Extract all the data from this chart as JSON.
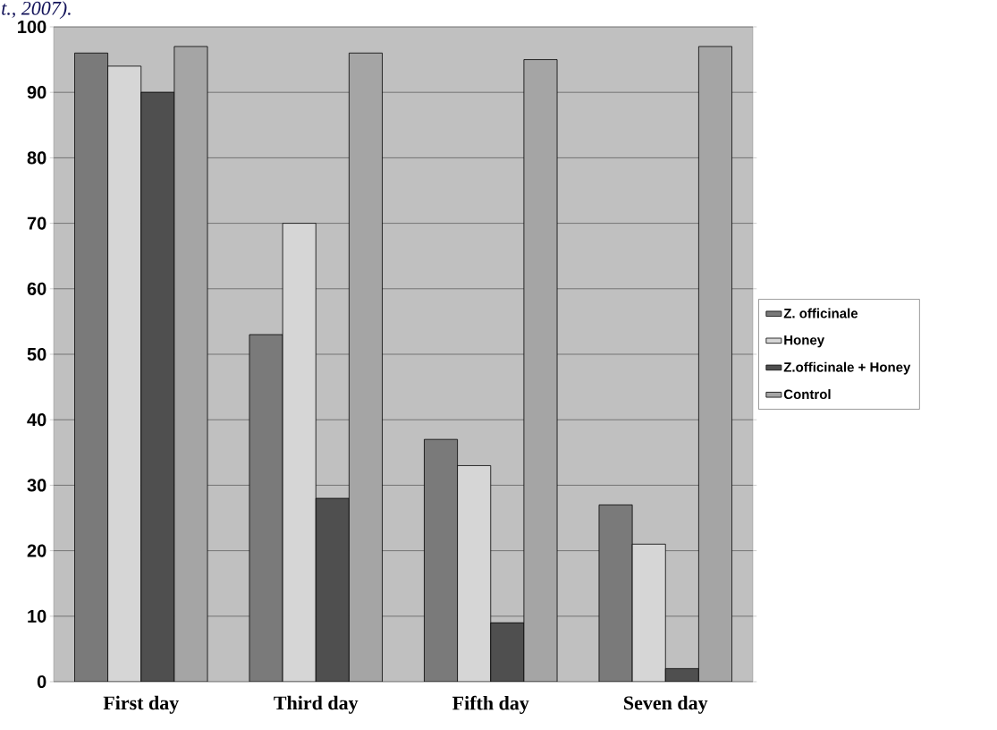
{
  "chart_data": {
    "type": "bar",
    "annotations": [
      "t., 2007)."
    ],
    "categories": [
      "First day",
      "Third day",
      "Fifth day",
      "Seven day"
    ],
    "series": [
      {
        "name": "Z. officinale",
        "color": "#7a7a7a",
        "values": [
          96,
          53,
          37,
          27
        ]
      },
      {
        "name": "Honey",
        "color": "#d6d6d6",
        "values": [
          94,
          70,
          33,
          21
        ]
      },
      {
        "name": "Z.officinale + Honey",
        "color": "#4f4f4f",
        "values": [
          90,
          28,
          9,
          2
        ]
      },
      {
        "name": "Control",
        "color": "#a5a5a5",
        "values": [
          97,
          96,
          95,
          97
        ]
      }
    ],
    "ylim": [
      0,
      100
    ],
    "yticks": [
      0,
      10,
      20,
      30,
      40,
      50,
      60,
      70,
      80,
      90,
      100
    ],
    "grid": "y",
    "legend": "right"
  }
}
